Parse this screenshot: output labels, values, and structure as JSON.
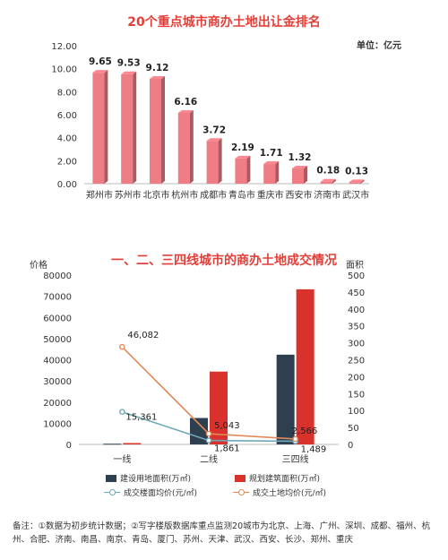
{
  "chart_data": [
    {
      "type": "bar",
      "title": "20个重点城市商办土地出让金排名",
      "unit": "单位：亿元",
      "categories": [
        "郑州市",
        "苏州市",
        "北京市",
        "杭州市",
        "成都市",
        "青岛市",
        "重庆市",
        "西安市",
        "济南市",
        "武汉市"
      ],
      "values": [
        9.65,
        9.53,
        9.12,
        6.16,
        3.72,
        2.19,
        1.71,
        1.32,
        0.18,
        0.13
      ],
      "value_labels": [
        "9.65",
        "9.53",
        "9.12",
        "6.16",
        "3.72",
        "2.19",
        "1.71",
        "1.32",
        "0.18",
        "0.13"
      ],
      "ylim": [
        0,
        12
      ],
      "yticks": [
        "0.00",
        "2.00",
        "4.00",
        "6.00",
        "8.00",
        "10.00",
        "12.00"
      ],
      "bar_color": "#ee7d86",
      "grid": false
    },
    {
      "type": "bar",
      "title": "一、二、三四线城市的商办土地成交情况",
      "ylabel_left": "价格",
      "ylabel_right": "面积",
      "categories": [
        "一线",
        "二线",
        "三四线"
      ],
      "ylim_left": [
        0,
        80000
      ],
      "yticks_left": [
        "0",
        "10000",
        "20000",
        "30000",
        "40000",
        "50000",
        "60000",
        "70000",
        "80000"
      ],
      "ylim_right": [
        0,
        500
      ],
      "yticks_right": [
        "0",
        "50",
        "100",
        "150",
        "200",
        "250",
        "300",
        "350",
        "400",
        "450",
        "500"
      ],
      "series": [
        {
          "name": "建设用地面积(万㎡)",
          "kind": "bar",
          "axis": "right",
          "color": "#2e3f4f",
          "values": [
            2,
            78,
            265
          ]
        },
        {
          "name": "规划建筑面积(万㎡)",
          "kind": "bar",
          "axis": "right",
          "color": "#d9312b",
          "values": [
            4,
            215,
            458
          ]
        },
        {
          "name": "成交楼面均价(元/㎡)",
          "kind": "line",
          "axis": "left",
          "color": "#6fa8b8",
          "values": [
            15361,
            1861,
            1489
          ],
          "labels": [
            "15,361",
            "1,861",
            "1,489"
          ]
        },
        {
          "name": "成交土地均价(元/㎡)",
          "kind": "line",
          "axis": "left",
          "color": "#e08a5a",
          "values": [
            46082,
            5043,
            2566
          ],
          "labels": [
            "46,082",
            "5,043",
            "2,566"
          ]
        }
      ],
      "grid": false
    }
  ],
  "footnote": "备注：①数据为初步统计数据；②写字楼版数据库重点监测20城市为北京、上海、广州、深圳、成都、福州、杭州、合肥、济南、南昌、南京、青岛、厦门、苏州、天津、武汉、西安、长沙、郑州、重庆"
}
